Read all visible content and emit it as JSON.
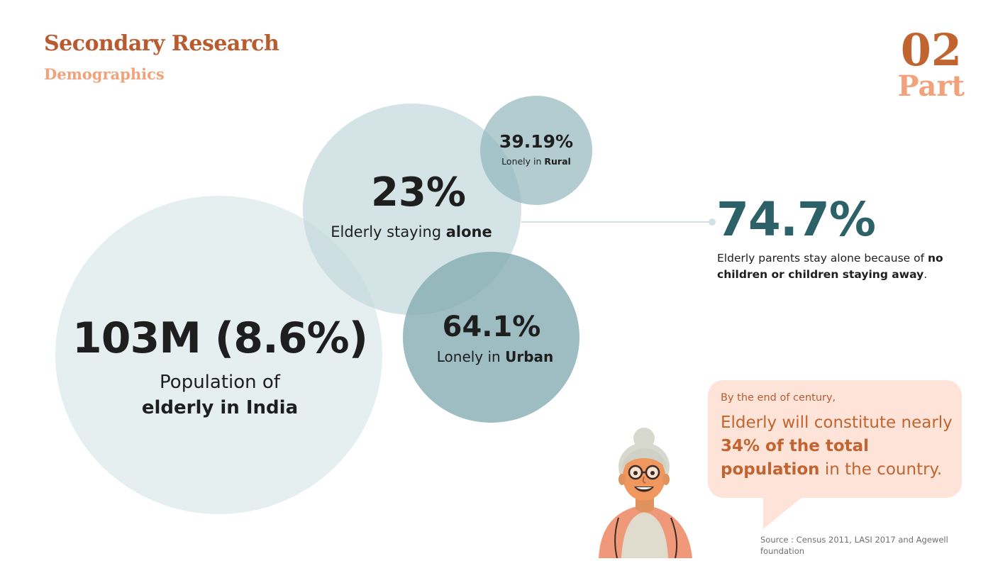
{
  "header": {
    "title": "Secondary Research",
    "subtitle": "Demographics",
    "part_number": "02",
    "part_label": "Part"
  },
  "bubbles": {
    "population": {
      "value": "103M (8.6%)",
      "label_line1": "Population of",
      "label_line2": "elderly in India"
    },
    "alone": {
      "value": "23%",
      "label_prefix": "Elderly staying ",
      "label_bold": "alone"
    },
    "rural": {
      "value": "39.19%",
      "label_prefix": "Lonely in ",
      "label_bold": "Rural"
    },
    "urban": {
      "value": "64.1%",
      "label_prefix": "Lonely in ",
      "label_bold": "Urban"
    }
  },
  "stat": {
    "value": "74.7%",
    "desc_prefix": "Elderly parents stay alone because of ",
    "desc_bold": "no children or children staying away",
    "desc_suffix": "."
  },
  "callout": {
    "intro": "By the end of century,",
    "body_prefix": "Elderly will constitute nearly ",
    "body_bold": "34% of the total population",
    "body_suffix": " in the country."
  },
  "source": "Source : Census 2011, LASI 2017 and Agewell foundation",
  "colors": {
    "title": "#b85c30",
    "accent_light": "#f2a27a",
    "stat_teal": "#2c6168",
    "callout_bg": "#fde3d8"
  }
}
